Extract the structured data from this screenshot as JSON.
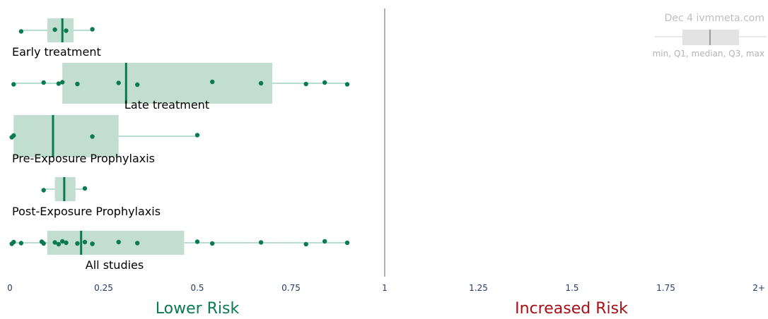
{
  "chart_data": {
    "type": "box",
    "xlim": [
      0,
      2
    ],
    "x_ticks": [
      {
        "value": 0,
        "label": "0"
      },
      {
        "value": 0.25,
        "label": "0.25"
      },
      {
        "value": 0.5,
        "label": "0.5"
      },
      {
        "value": 0.75,
        "label": "0.75"
      },
      {
        "value": 1,
        "label": "1"
      },
      {
        "value": 1.25,
        "label": "1.25"
      },
      {
        "value": 1.5,
        "label": "1.5"
      },
      {
        "value": 1.75,
        "label": "1.75"
      },
      {
        "value": 2,
        "label": "2+"
      }
    ],
    "reference_line": 1,
    "groups": [
      {
        "label": "Early treatment",
        "min": 0.03,
        "q1": 0.1,
        "median": 0.14,
        "q3": 0.17,
        "max": 0.22,
        "points": [
          0.03,
          0.12,
          0.15,
          0.22
        ]
      },
      {
        "label": "Late treatment",
        "min": 0.01,
        "q1": 0.14,
        "median": 0.31,
        "q3": 0.7,
        "max": 0.9,
        "points": [
          0.01,
          0.09,
          0.13,
          0.14,
          0.18,
          0.29,
          0.34,
          0.54,
          0.67,
          0.79,
          0.84,
          0.9
        ]
      },
      {
        "label": "Pre-Exposure Prophylaxis",
        "min": 0.005,
        "q1": 0.01,
        "median": 0.115,
        "q3": 0.29,
        "max": 0.5,
        "points": [
          0.005,
          0.01,
          0.22,
          0.5
        ]
      },
      {
        "label": "Post-Exposure Prophylaxis",
        "min": 0.09,
        "q1": 0.12,
        "median": 0.145,
        "q3": 0.175,
        "max": 0.2,
        "points": [
          0.09,
          0.2
        ]
      },
      {
        "label": "All studies",
        "min": 0.005,
        "q1": 0.1,
        "median": 0.19,
        "q3": 0.465,
        "max": 0.9,
        "points": [
          0.005,
          0.01,
          0.03,
          0.085,
          0.09,
          0.12,
          0.13,
          0.14,
          0.15,
          0.18,
          0.2,
          0.22,
          0.22,
          0.29,
          0.34,
          0.5,
          0.54,
          0.67,
          0.79,
          0.84,
          0.9
        ]
      }
    ],
    "legend": {
      "title": "Dec 4 ivmmeta.com",
      "caption": "min, Q1, median, Q3, max",
      "placement": "top-right"
    },
    "lower_risk_label": "Lower Risk",
    "increased_risk_label": "Increased Risk"
  },
  "colors": {
    "box_fill": "#c2ded1",
    "whisker": "#6fbfa0",
    "point": "#0a7a50",
    "median": "#0a7a50",
    "reference_line": "#b3b3b3",
    "tick_text": "#1f3a68",
    "lower_risk": "#0a7a50",
    "increased_risk": "#a50f15",
    "legend_box": "#e3e3e3",
    "legend_median": "#9a9a9a"
  }
}
